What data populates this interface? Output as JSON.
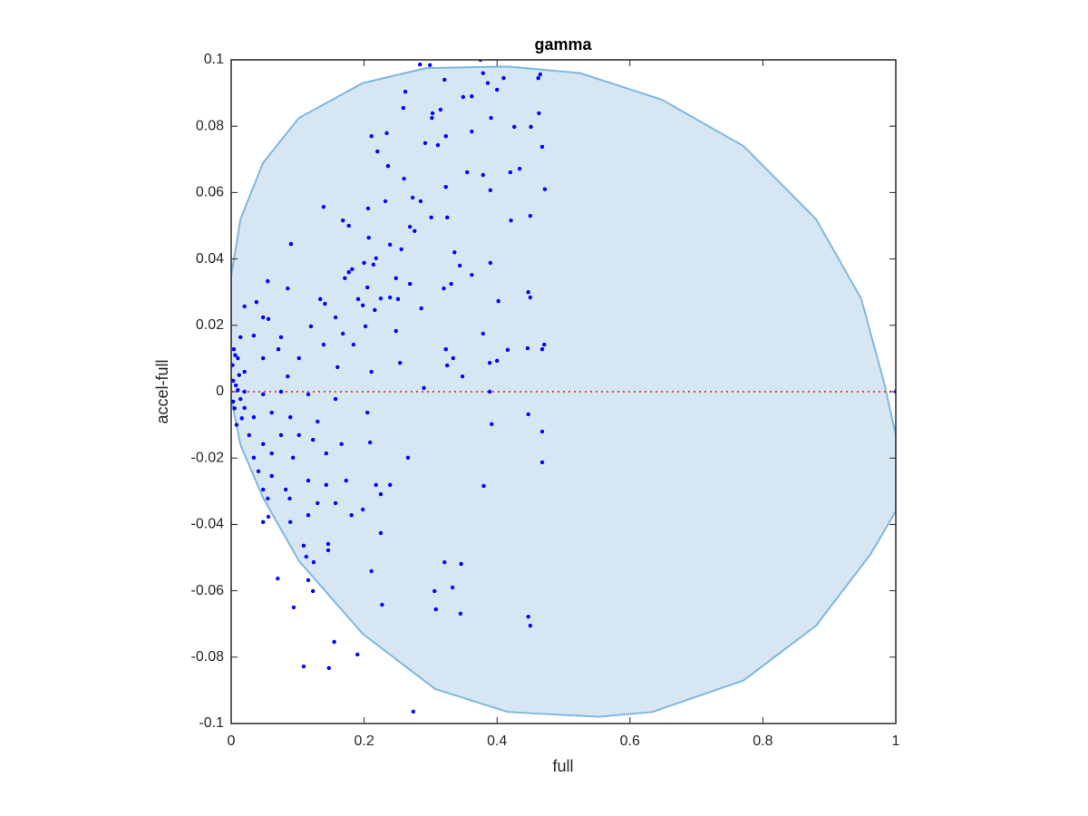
{
  "chart_data": {
    "type": "scatter",
    "title": "gamma",
    "x_label": "full",
    "y_label": "accel-full",
    "xlim": [
      0,
      1
    ],
    "ylim": [
      -0.1,
      0.1
    ],
    "xticks": [
      0,
      0.2,
      0.4,
      0.6,
      0.8,
      1
    ],
    "yticks": [
      -0.1,
      -0.08,
      -0.06,
      -0.04,
      -0.02,
      0,
      0.02,
      0.04,
      0.06,
      0.08,
      0.1
    ],
    "grid": false,
    "region": {
      "color": "#d6e7f3",
      "edge_color": "#7fb8de",
      "x": [
        0,
        0.014,
        0.048,
        0.102,
        0.198,
        0.293,
        0.416,
        0.525,
        0.648,
        0.771,
        0.88,
        0.948,
        0.982,
        1,
        1,
        0.962,
        0.88,
        0.771,
        0.634,
        0.553,
        0.416,
        0.307,
        0.198,
        0.102,
        0.048,
        0.014,
        0
      ],
      "y": [
        0.035,
        0.052,
        0.069,
        0.0825,
        0.093,
        0.0975,
        0.098,
        0.096,
        0.088,
        0.074,
        0.052,
        0.028,
        0.003,
        -0.013,
        -0.036,
        -0.049,
        -0.0705,
        -0.087,
        -0.0965,
        -0.098,
        -0.0965,
        -0.0896,
        -0.073,
        -0.051,
        -0.032,
        -0.016,
        -0.002
      ]
    },
    "reference_line": {
      "y": 0,
      "color": "#e8413a"
    },
    "series": [
      {
        "color": "#0000ff",
        "x": [
          0.284,
          0.299,
          0.375,
          0.379,
          0.41,
          0.386,
          0.4,
          0.465,
          0.462,
          0.321,
          0.262,
          0.349,
          0.362,
          0.259,
          0.315,
          0.303,
          0.302,
          0.391,
          0.463,
          0.211,
          0.234,
          0.323,
          0.362,
          0.426,
          0.451,
          0.292,
          0.311,
          0.22,
          0.468,
          0.236,
          0.355,
          0.379,
          0.42,
          0.434,
          0.26,
          0.323,
          0.39,
          0.472,
          0.273,
          0.232,
          0.139,
          0.285,
          0.168,
          0.206,
          0.421,
          0.45,
          0.301,
          0.325,
          0.269,
          0.177,
          0.276,
          0.207,
          0.239,
          0.256,
          0.336,
          0.09,
          0.2,
          0.214,
          0.218,
          0.177,
          0.182,
          0.39,
          0.344,
          0.362,
          0.248,
          0.171,
          0.205,
          0.269,
          0.331,
          0.32,
          0.085,
          0.055,
          0.447,
          0.45,
          0.402,
          0.134,
          0.038,
          0.141,
          0.191,
          0.198,
          0.225,
          0.239,
          0.251,
          0.286,
          0.216,
          0.02,
          0.048,
          0.056,
          0.12,
          0.157,
          0.168,
          0.202,
          0.034,
          0.014,
          0.075,
          0.248,
          0.379,
          0.471,
          0.468,
          0.446,
          0.416,
          0.184,
          0.139,
          0.102,
          0.071,
          0.048,
          0.323,
          0.334,
          0.325,
          0.254,
          0.389,
          0.4,
          0.16,
          0.211,
          0.085,
          0.348,
          0.02,
          0.01,
          0.004,
          0.003,
          0.007,
          0.01,
          0.014,
          0.02,
          0.048,
          0.075,
          0.116,
          0.157,
          0.29,
          0.389,
          1,
          0.02,
          0.034,
          0.061,
          0.089,
          0.13,
          0.205,
          0.392,
          0.447,
          0.468,
          0.027,
          0.048,
          0.075,
          0.102,
          0.123,
          0.166,
          0.209,
          0.061,
          0.034,
          0.093,
          0.143,
          0.266,
          0.468,
          0.041,
          0.061,
          0.116,
          0.143,
          0.173,
          0.218,
          0.239,
          0.38,
          0.048,
          0.082,
          0.055,
          0.088,
          0.157,
          0.13,
          0.225,
          0.048,
          0.056,
          0.116,
          0.089,
          0.181,
          0.198,
          0.225,
          0.07,
          0.109,
          0.113,
          0.146,
          0.146,
          0.124,
          0.211,
          0.116,
          0.123,
          0.321,
          0.346,
          0.306,
          0.333,
          0.094,
          0.227,
          0.308,
          0.345,
          0.447,
          0.45,
          0.155,
          0.19,
          0.109,
          0.147,
          0.274,
          0.002,
          0.005,
          0.008,
          0.003,
          0.012,
          0.006,
          0.016
        ],
        "values": [
          0.0986,
          0.0984,
          0.1,
          0.096,
          0.0945,
          0.093,
          0.091,
          0.0956,
          0.0945,
          0.094,
          0.0904,
          0.0888,
          0.089,
          0.0855,
          0.085,
          0.0839,
          0.0825,
          0.0825,
          0.0839,
          0.077,
          0.0779,
          0.077,
          0.0784,
          0.0798,
          0.0798,
          0.0749,
          0.0743,
          0.0724,
          0.0738,
          0.068,
          0.0661,
          0.0653,
          0.0661,
          0.0672,
          0.0642,
          0.0617,
          0.0607,
          0.061,
          0.0585,
          0.0574,
          0.0557,
          0.0574,
          0.0516,
          0.0552,
          0.0516,
          0.053,
          0.0525,
          0.0525,
          0.0497,
          0.05,
          0.0484,
          0.0464,
          0.0443,
          0.0429,
          0.042,
          0.0445,
          0.0388,
          0.0383,
          0.0402,
          0.036,
          0.0369,
          0.0388,
          0.038,
          0.0352,
          0.0342,
          0.0342,
          0.0314,
          0.0325,
          0.0325,
          0.0311,
          0.0311,
          0.0333,
          0.03,
          0.0284,
          0.0273,
          0.0279,
          0.027,
          0.0265,
          0.0279,
          0.026,
          0.0281,
          0.0284,
          0.0279,
          0.0251,
          0.0246,
          0.0257,
          0.0224,
          0.0219,
          0.0197,
          0.0224,
          0.0175,
          0.0197,
          0.0169,
          0.0164,
          0.0164,
          0.0183,
          0.0175,
          0.0142,
          0.0128,
          0.0131,
          0.0126,
          0.0142,
          0.0142,
          0.0101,
          0.0128,
          0.0101,
          0.0128,
          0.0101,
          0.0079,
          0.0087,
          0.0087,
          0.0093,
          0.0074,
          0.006,
          0.0046,
          0.0046,
          0.006,
          0.0101,
          0.0128,
          0.0033,
          0.0019,
          0.0005,
          -0.0022,
          0,
          -0.0008,
          0,
          -0.0008,
          -0.0022,
          0.0011,
          0,
          0,
          -0.0049,
          -0.0077,
          -0.0063,
          -0.0077,
          -0.009,
          -0.0063,
          -0.0098,
          -0.0068,
          -0.012,
          -0.0131,
          -0.0158,
          -0.0131,
          -0.0131,
          -0.0145,
          -0.0158,
          -0.0153,
          -0.0186,
          -0.0199,
          -0.0199,
          -0.0186,
          -0.0199,
          -0.0213,
          -0.024,
          -0.0254,
          -0.0268,
          -0.0281,
          -0.0268,
          -0.0281,
          -0.0281,
          -0.0284,
          -0.0295,
          -0.0295,
          -0.0322,
          -0.0322,
          -0.0336,
          -0.0336,
          -0.0309,
          -0.0393,
          -0.0377,
          -0.0372,
          -0.0393,
          -0.0372,
          -0.0355,
          -0.0426,
          -0.0563,
          -0.0464,
          -0.0497,
          -0.0459,
          -0.0478,
          -0.0514,
          -0.0541,
          -0.0568,
          -0.0601,
          -0.0514,
          -0.0519,
          -0.0601,
          -0.059,
          -0.065,
          -0.0642,
          -0.0656,
          -0.0669,
          -0.0678,
          -0.0705,
          -0.0754,
          -0.0792,
          -0.0828,
          -0.0833,
          -0.0964,
          0.008,
          -0.005,
          -0.01,
          -0.003,
          0.005,
          0.011,
          -0.008
        ]
      }
    ]
  }
}
